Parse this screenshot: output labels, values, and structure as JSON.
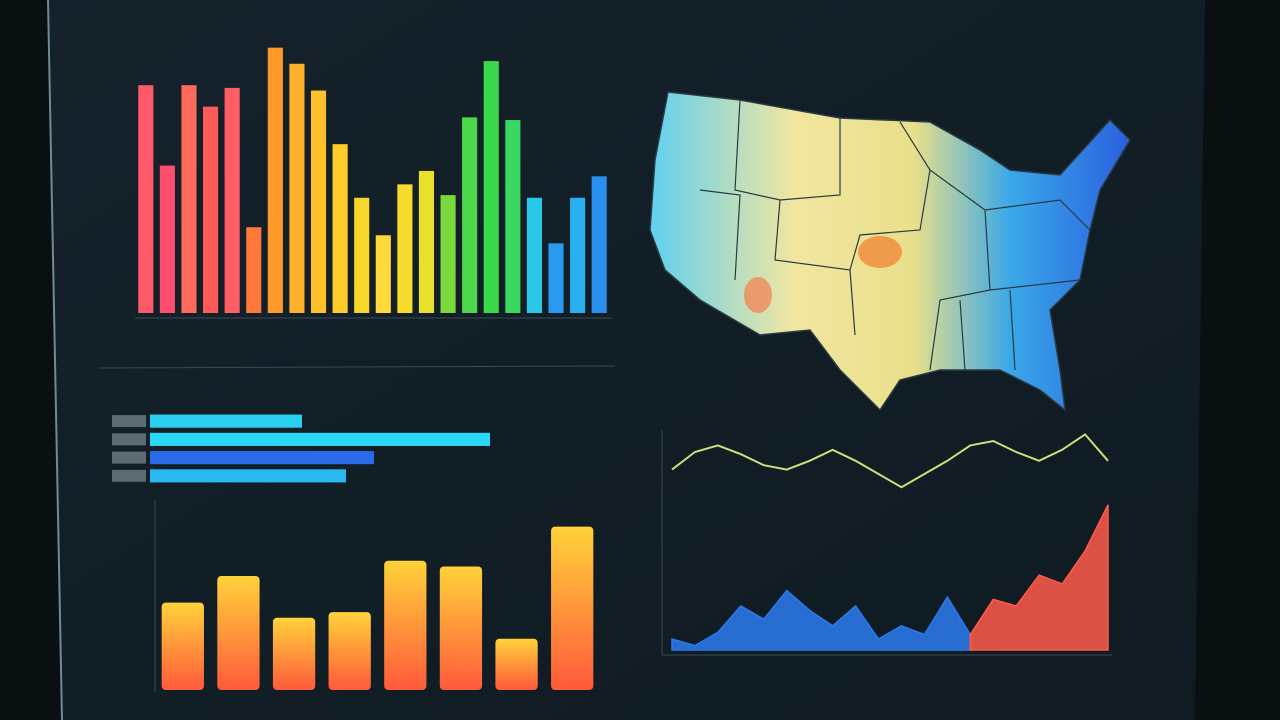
{
  "chart_data": [
    {
      "type": "bar",
      "values": [
        85,
        55,
        85,
        77,
        84,
        32,
        99,
        93,
        83,
        63,
        43,
        29,
        48,
        53,
        44,
        73,
        94,
        72,
        43,
        26,
        43,
        51
      ],
      "colors": [
        "#ff5a6a",
        "#ff4d6d",
        "#ff6a5a",
        "#ff5a5a",
        "#ff5e66",
        "#ff7a3a",
        "#ff9a2a",
        "#ffb02a",
        "#ffc02a",
        "#ffcc2a",
        "#f7d62a",
        "#ffd83a",
        "#f5dc2a",
        "#e8e02a",
        "#7ad83a",
        "#4cd84a",
        "#3ad84a",
        "#3ad860",
        "#2ac8e8",
        "#2a9af0",
        "#2ab0f0",
        "#2a90f0"
      ],
      "ylim": [
        0,
        100
      ]
    },
    {
      "type": "hbar",
      "values": [
        38,
        85,
        56,
        49
      ],
      "colors": [
        "#2ad0f0",
        "#2ad8f5",
        "#2a6ae8",
        "#2ab8f0"
      ],
      "xlim": [
        0,
        100
      ]
    },
    {
      "type": "gbar",
      "values": [
        46,
        60,
        38,
        41,
        68,
        65,
        27,
        86
      ],
      "gradient": [
        "#ff5a3a",
        "#ffd23a"
      ],
      "ylim": [
        0,
        100
      ]
    },
    {
      "type": "line",
      "categories": [
        null,
        null,
        null,
        null,
        null,
        null,
        null,
        null,
        null,
        null,
        null,
        null,
        null,
        null,
        null,
        null,
        null,
        null,
        null,
        null
      ],
      "series": [
        {
          "color": "#c8e27a",
          "values": [
            82,
            90,
            93,
            89,
            84,
            82,
            86,
            91,
            86,
            80,
            74,
            80,
            86,
            93,
            95,
            90,
            86,
            91,
            98,
            86
          ]
        },
        {
          "color": "#2a7af0",
          "fill": true,
          "values": [
            5,
            2,
            8,
            20,
            14,
            27,
            18,
            11,
            20,
            5,
            11,
            7,
            24,
            7,
            null,
            null,
            null,
            null,
            null,
            null
          ]
        },
        {
          "color": "#ff5a4a",
          "fill": true,
          "values": [
            null,
            null,
            null,
            null,
            null,
            null,
            null,
            null,
            null,
            null,
            null,
            null,
            null,
            7,
            23,
            20,
            34,
            30,
            45,
            66
          ]
        }
      ],
      "ylim": [
        0,
        100
      ]
    }
  ]
}
